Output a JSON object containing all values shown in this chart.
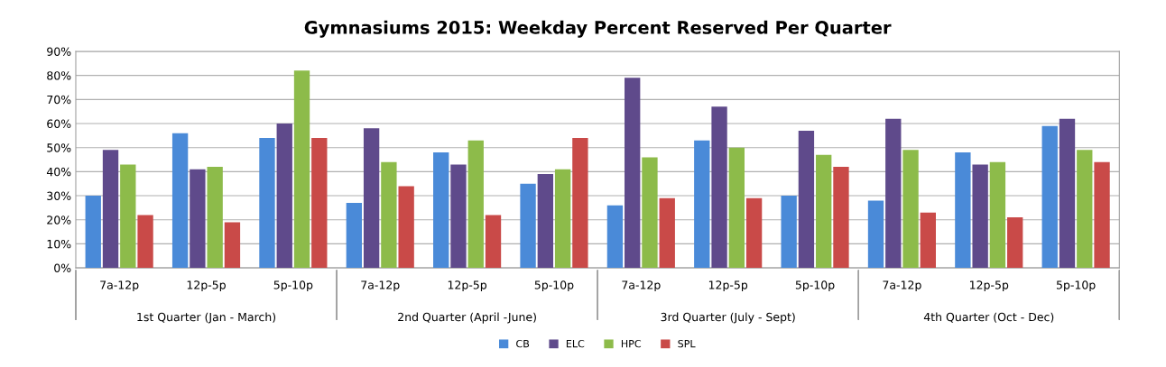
{
  "chart_data": {
    "type": "bar",
    "title": "Gymnasiums 2015: Weekday Percent Reserved Per Quarter",
    "categories": [
      "7a-12p",
      "12p-5p",
      "5p-10p",
      "7a-12p",
      "12p-5p",
      "5p-10p",
      "7a-12p",
      "12p-5p",
      "5p-10p",
      "7a-12p",
      "12p-5p",
      "5p-10p"
    ],
    "series": [
      {
        "name": "CB",
        "color": "#4a8ad8",
        "values": [
          30,
          56,
          54,
          27,
          48,
          35,
          26,
          53,
          30,
          28,
          48,
          59
        ]
      },
      {
        "name": "ELC",
        "color": "#5f4a8b",
        "values": [
          49,
          41,
          60,
          58,
          43,
          39,
          79,
          67,
          57,
          62,
          43,
          62
        ]
      },
      {
        "name": "HPC",
        "color": "#8dbb4a",
        "values": [
          43,
          42,
          82,
          44,
          53,
          41,
          46,
          50,
          47,
          49,
          44,
          49
        ]
      },
      {
        "name": "SPL",
        "color": "#c94a48",
        "values": [
          22,
          19,
          54,
          34,
          22,
          54,
          29,
          29,
          42,
          23,
          21,
          44
        ]
      }
    ],
    "annotations": [
      "1st Quarter (Jan - March)",
      "2nd Quarter (April -June)",
      "3rd Quarter (July - Sept)",
      "4th Quarter (Oct - Dec)"
    ],
    "ylim": [
      0,
      90
    ],
    "yticks": [
      {
        "value": 0,
        "label": "0%"
      },
      {
        "value": 10,
        "label": "10%"
      },
      {
        "value": 20,
        "label": "20%"
      },
      {
        "value": 30,
        "label": "30%"
      },
      {
        "value": 40,
        "label": "40%"
      },
      {
        "value": 50,
        "label": "50%"
      },
      {
        "value": 60,
        "label": "60%"
      },
      {
        "value": 70,
        "label": "70%"
      },
      {
        "value": 80,
        "label": "80%"
      },
      {
        "value": 90,
        "label": "90%"
      }
    ],
    "grid": true,
    "legend": "bottom"
  }
}
